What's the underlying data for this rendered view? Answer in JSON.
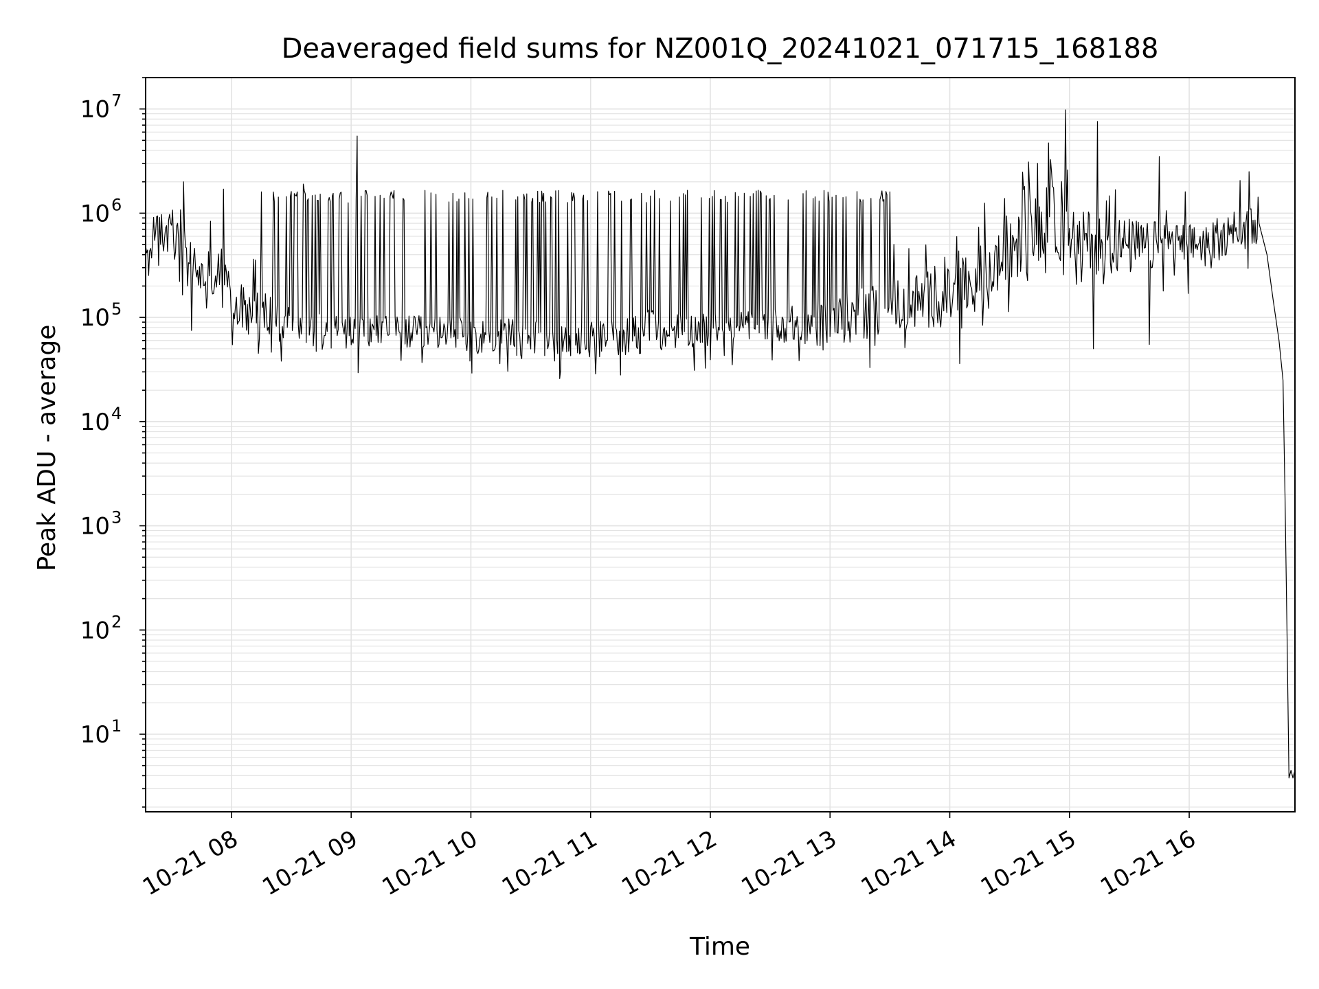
{
  "chart_data": {
    "type": "line",
    "title": "Deaveraged field sums for NZ001Q_20241021_071715_168188",
    "xlabel": "Time",
    "ylabel": "Peak ADU - average",
    "x_scale": "time",
    "y_scale": "log",
    "xlim": [
      "2024-10-21 07:17",
      "2024-10-21 16:53"
    ],
    "ylim": [
      1.8,
      20000000
    ],
    "grid": true,
    "grid_minor": true,
    "x_ticks": [
      {
        "t": "2024-10-21 08:00",
        "label": "10-21 08"
      },
      {
        "t": "2024-10-21 09:00",
        "label": "10-21 09"
      },
      {
        "t": "2024-10-21 10:00",
        "label": "10-21 10"
      },
      {
        "t": "2024-10-21 11:00",
        "label": "10-21 11"
      },
      {
        "t": "2024-10-21 12:00",
        "label": "10-21 12"
      },
      {
        "t": "2024-10-21 13:00",
        "label": "10-21 13"
      },
      {
        "t": "2024-10-21 14:00",
        "label": "10-21 14"
      },
      {
        "t": "2024-10-21 15:00",
        "label": "10-21 15"
      },
      {
        "t": "2024-10-21 16:00",
        "label": "10-21 16"
      }
    ],
    "y_ticks": [
      {
        "value": 10,
        "base": "10",
        "exp": "1"
      },
      {
        "value": 100,
        "base": "10",
        "exp": "2"
      },
      {
        "value": 1000,
        "base": "10",
        "exp": "3"
      },
      {
        "value": 10000,
        "base": "10",
        "exp": "4"
      },
      {
        "value": 100000,
        "base": "10",
        "exp": "5"
      },
      {
        "value": 1000000,
        "base": "10",
        "exp": "6"
      },
      {
        "value": 10000000,
        "base": "10",
        "exp": "7"
      }
    ],
    "series": [
      {
        "color": "#000000",
        "baseline": [
          {
            "t": "2024-10-21 07:17",
            "lo": 300000,
            "hi": 500000
          },
          {
            "t": "2024-10-21 07:25",
            "lo": 400000,
            "hi": 1300000
          },
          {
            "t": "2024-10-21 07:35",
            "lo": 300000,
            "hi": 800000
          },
          {
            "t": "2024-10-21 07:45",
            "lo": 150000,
            "hi": 400000
          },
          {
            "t": "2024-10-21 07:55",
            "lo": 120000,
            "hi": 500000
          },
          {
            "t": "2024-10-21 08:00",
            "lo": 80000,
            "hi": 200000
          },
          {
            "t": "2024-10-21 08:15",
            "lo": 60000,
            "hi": 200000
          },
          {
            "t": "2024-10-21 08:30",
            "lo": 55000,
            "hi": 120000
          },
          {
            "t": "2024-10-21 09:00",
            "lo": 50000,
            "hi": 110000
          },
          {
            "t": "2024-10-21 10:00",
            "lo": 45000,
            "hi": 100000
          },
          {
            "t": "2024-10-21 11:00",
            "lo": 40000,
            "hi": 90000
          },
          {
            "t": "2024-10-21 11:30",
            "lo": 45000,
            "hi": 120000
          },
          {
            "t": "2024-10-21 12:00",
            "lo": 55000,
            "hi": 110000
          },
          {
            "t": "2024-10-21 12:30",
            "lo": 60000,
            "hi": 120000
          },
          {
            "t": "2024-10-21 13:00",
            "lo": 50000,
            "hi": 150000
          },
          {
            "t": "2024-10-21 13:30",
            "lo": 70000,
            "hi": 250000
          },
          {
            "t": "2024-10-21 14:00",
            "lo": 80000,
            "hi": 300000
          },
          {
            "t": "2024-10-21 14:30",
            "lo": 200000,
            "hi": 800000
          },
          {
            "t": "2024-10-21 14:50",
            "lo": 400000,
            "hi": 2000000
          },
          {
            "t": "2024-10-21 15:00",
            "lo": 300000,
            "hi": 1200000
          },
          {
            "t": "2024-10-21 15:30",
            "lo": 250000,
            "hi": 900000
          },
          {
            "t": "2024-10-21 16:00",
            "lo": 300000,
            "hi": 800000
          },
          {
            "t": "2024-10-21 16:35",
            "lo": 500000,
            "hi": 900000
          }
        ],
        "spikes": [
          {
            "t": "2024-10-21 07:36",
            "value": 2000000
          },
          {
            "t": "2024-10-21 07:56",
            "value": 1700000
          },
          {
            "t": "2024-10-21 08:15",
            "value": 1600000
          },
          {
            "t": "2024-10-21 08:36",
            "value": 1900000
          },
          {
            "t": "2024-10-21 09:03",
            "value": 5500000
          },
          {
            "t": "2024-10-21 09:20",
            "value": 1600000
          },
          {
            "t": "2024-10-21 13:30",
            "value": 1600000
          },
          {
            "t": "2024-10-21 14:58",
            "value": 9800000
          },
          {
            "t": "2024-10-21 15:14",
            "value": 7600000
          },
          {
            "t": "2024-10-21 15:45",
            "value": 3500000
          },
          {
            "t": "2024-10-21 16:30",
            "value": 2500000
          }
        ],
        "dips": [
          {
            "t": "2024-10-21 07:40",
            "value": 75000
          },
          {
            "t": "2024-10-21 08:25",
            "value": 38000
          },
          {
            "t": "2024-10-21 11:15",
            "value": 28000
          },
          {
            "t": "2024-10-21 11:52",
            "value": 31000
          },
          {
            "t": "2024-10-21 13:20",
            "value": 33000
          },
          {
            "t": "2024-10-21 14:05",
            "value": 36000
          },
          {
            "t": "2024-10-21 15:12",
            "value": 50000
          },
          {
            "t": "2024-10-21 15:40",
            "value": 55000
          }
        ],
        "tail": [
          {
            "t": "2024-10-21 16:35",
            "value": 800000
          },
          {
            "t": "2024-10-21 16:39",
            "value": 400000
          },
          {
            "t": "2024-10-21 16:42",
            "value": 150000
          },
          {
            "t": "2024-10-21 16:45",
            "value": 60000
          },
          {
            "t": "2024-10-21 16:47",
            "value": 25000
          },
          {
            "t": "2024-10-21 16:48",
            "value": 2000
          },
          {
            "t": "2024-10-21 16:49",
            "value": 100
          },
          {
            "t": "2024-10-21 16:50",
            "value": 3.8
          },
          {
            "t": "2024-10-21 16:51",
            "value": 4.5
          },
          {
            "t": "2024-10-21 16:52",
            "value": 3.8
          },
          {
            "t": "2024-10-21 16:53",
            "value": 4.5
          }
        ]
      }
    ]
  }
}
